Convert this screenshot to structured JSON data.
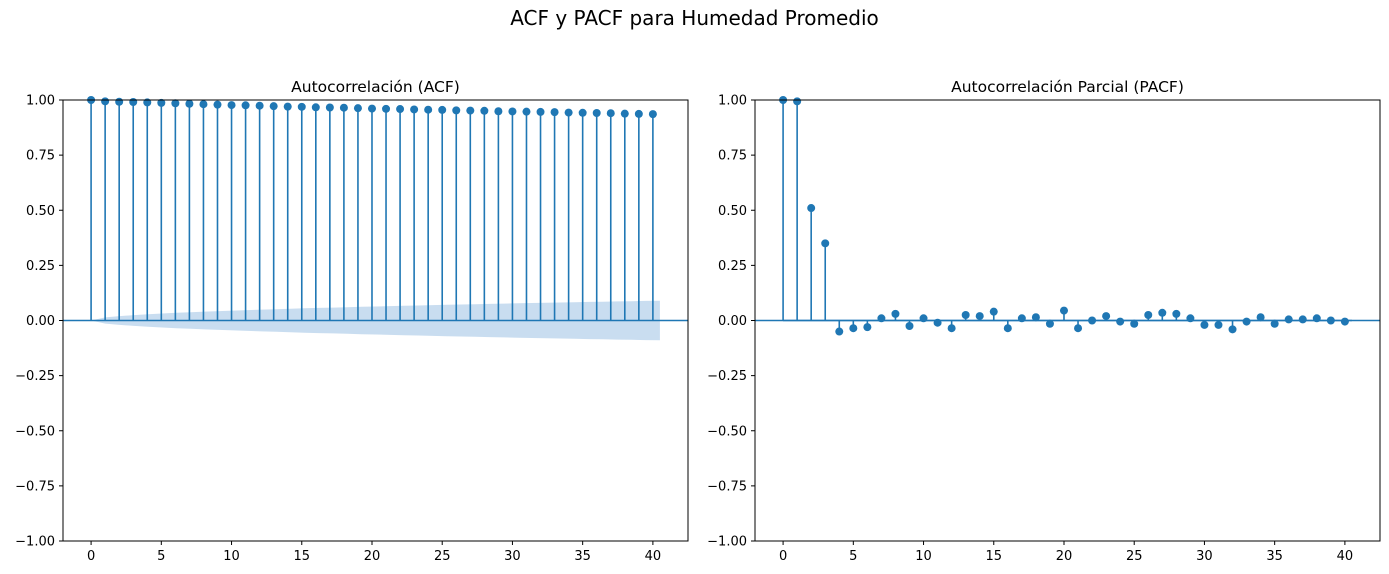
{
  "figure": {
    "title": "ACF y PACF para Humedad Promedio"
  },
  "chart_data": [
    {
      "type": "stem",
      "title": "Autocorrelación (ACF)",
      "xlabel": "",
      "ylabel": "",
      "xlim": [
        -2,
        42.5
      ],
      "ylim": [
        -1.0,
        1.0
      ],
      "xticks": [
        0,
        5,
        10,
        15,
        20,
        25,
        30,
        35,
        40
      ],
      "yticks": [
        -1.0,
        -0.75,
        -0.5,
        -0.25,
        0.0,
        0.25,
        0.5,
        0.75,
        1.0
      ],
      "xtick_labels": [
        "0",
        "5",
        "10",
        "15",
        "20",
        "25",
        "30",
        "35",
        "40"
      ],
      "ytick_labels": [
        "−1.00",
        "−0.75",
        "−0.50",
        "−0.25",
        "0.00",
        "0.25",
        "0.50",
        "0.75",
        "1.00"
      ],
      "x": [
        0,
        1,
        2,
        3,
        4,
        5,
        6,
        7,
        8,
        9,
        10,
        11,
        12,
        13,
        14,
        15,
        16,
        17,
        18,
        19,
        20,
        21,
        22,
        23,
        24,
        25,
        26,
        27,
        28,
        29,
        30,
        31,
        32,
        33,
        34,
        35,
        36,
        37,
        38,
        39,
        40
      ],
      "values": [
        1.0,
        0.994,
        0.992,
        0.991,
        0.989,
        0.987,
        0.985,
        0.983,
        0.981,
        0.979,
        0.977,
        0.976,
        0.974,
        0.972,
        0.97,
        0.969,
        0.967,
        0.966,
        0.965,
        0.963,
        0.961,
        0.96,
        0.959,
        0.957,
        0.956,
        0.955,
        0.953,
        0.952,
        0.951,
        0.949,
        0.948,
        0.947,
        0.946,
        0.945,
        0.943,
        0.942,
        0.941,
        0.94,
        0.938,
        0.937,
        0.936
      ],
      "confidence_band": {
        "x": [
          0,
          40.5
        ],
        "upper_at_end": 0.09,
        "shape": "increasing"
      },
      "grid": false,
      "colors": {
        "stem": "#1f77b4",
        "band": "#c6dbef",
        "zero_line": "#1f77b4"
      }
    },
    {
      "type": "stem",
      "title": "Autocorrelación Parcial (PACF)",
      "xlabel": "",
      "ylabel": "",
      "xlim": [
        -2,
        42.5
      ],
      "ylim": [
        -1.0,
        1.0
      ],
      "xticks": [
        0,
        5,
        10,
        15,
        20,
        25,
        30,
        35,
        40
      ],
      "yticks": [
        -1.0,
        -0.75,
        -0.5,
        -0.25,
        0.0,
        0.25,
        0.5,
        0.75,
        1.0
      ],
      "xtick_labels": [
        "0",
        "5",
        "10",
        "15",
        "20",
        "25",
        "30",
        "35",
        "40"
      ],
      "ytick_labels": [
        "−1.00",
        "−0.75",
        "−0.50",
        "−0.25",
        "0.00",
        "0.25",
        "0.50",
        "0.75",
        "1.00"
      ],
      "x": [
        0,
        1,
        2,
        3,
        4,
        5,
        6,
        7,
        8,
        9,
        10,
        11,
        12,
        13,
        14,
        15,
        16,
        17,
        18,
        19,
        20,
        21,
        22,
        23,
        24,
        25,
        26,
        27,
        28,
        29,
        30,
        31,
        32,
        33,
        34,
        35,
        36,
        37,
        38,
        39,
        40
      ],
      "values": [
        1.0,
        0.994,
        0.51,
        0.35,
        -0.05,
        -0.035,
        -0.03,
        0.01,
        0.03,
        -0.025,
        0.01,
        -0.01,
        -0.035,
        0.025,
        0.02,
        0.04,
        -0.035,
        0.01,
        0.015,
        -0.015,
        0.045,
        -0.035,
        0.0,
        0.02,
        -0.005,
        -0.015,
        0.025,
        0.035,
        0.03,
        0.01,
        -0.02,
        -0.02,
        -0.04,
        -0.005,
        0.015,
        -0.015,
        0.005,
        0.005,
        0.01,
        0.0,
        -0.005
      ],
      "confidence_band": {
        "x": [
          0,
          40.5
        ],
        "half_width": 0.006
      },
      "grid": false,
      "colors": {
        "stem": "#1f77b4",
        "band": "#c6dbef",
        "zero_line": "#1f77b4"
      }
    }
  ]
}
